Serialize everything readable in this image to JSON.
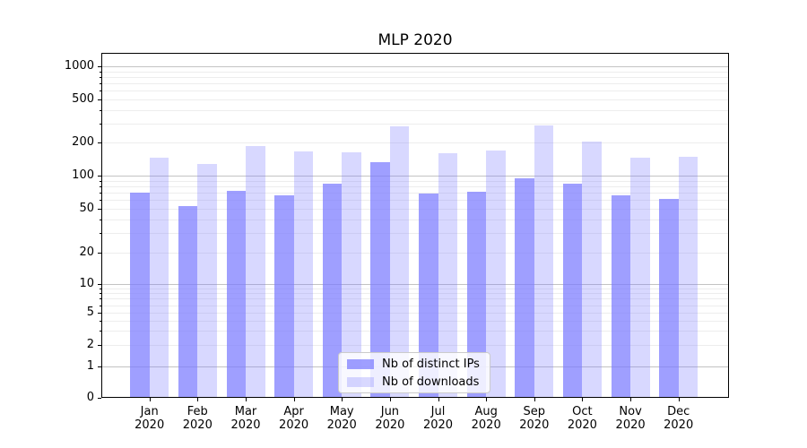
{
  "chart_data": {
    "type": "bar",
    "title": "MLP 2020",
    "categories": [
      "Jan 2020",
      "Feb 2020",
      "Mar 2020",
      "Apr 2020",
      "May 2020",
      "Jun 2020",
      "Jul 2020",
      "Aug 2020",
      "Sep 2020",
      "Oct 2020",
      "Nov 2020",
      "Dec 2020"
    ],
    "series": [
      {
        "name": "Nb of distinct IPs",
        "color": "#9b9bf1",
        "fill": "rgba(122,122,255,0.72)",
        "values": [
          70,
          53,
          73,
          66,
          84,
          132,
          69,
          72,
          94,
          84,
          66,
          61
        ]
      },
      {
        "name": "Nb of downloads",
        "color": "#d9d9fb",
        "fill": "rgba(122,122,255,0.29)",
        "values": [
          146,
          128,
          186,
          167,
          163,
          281,
          159,
          169,
          285,
          204,
          146,
          147
        ]
      }
    ],
    "yscale": "symlog",
    "y_ticks": [
      0,
      1,
      2,
      5,
      10,
      20,
      50,
      100,
      200,
      500,
      1000
    ],
    "ylim": [
      0,
      1300
    ],
    "xlabel": "",
    "ylabel": "",
    "grid": true,
    "legend": {
      "position": "lower center"
    },
    "colors": {
      "grid_major": "#c3c3c3",
      "grid_minor": "#ededed",
      "axis": "#000000"
    }
  }
}
